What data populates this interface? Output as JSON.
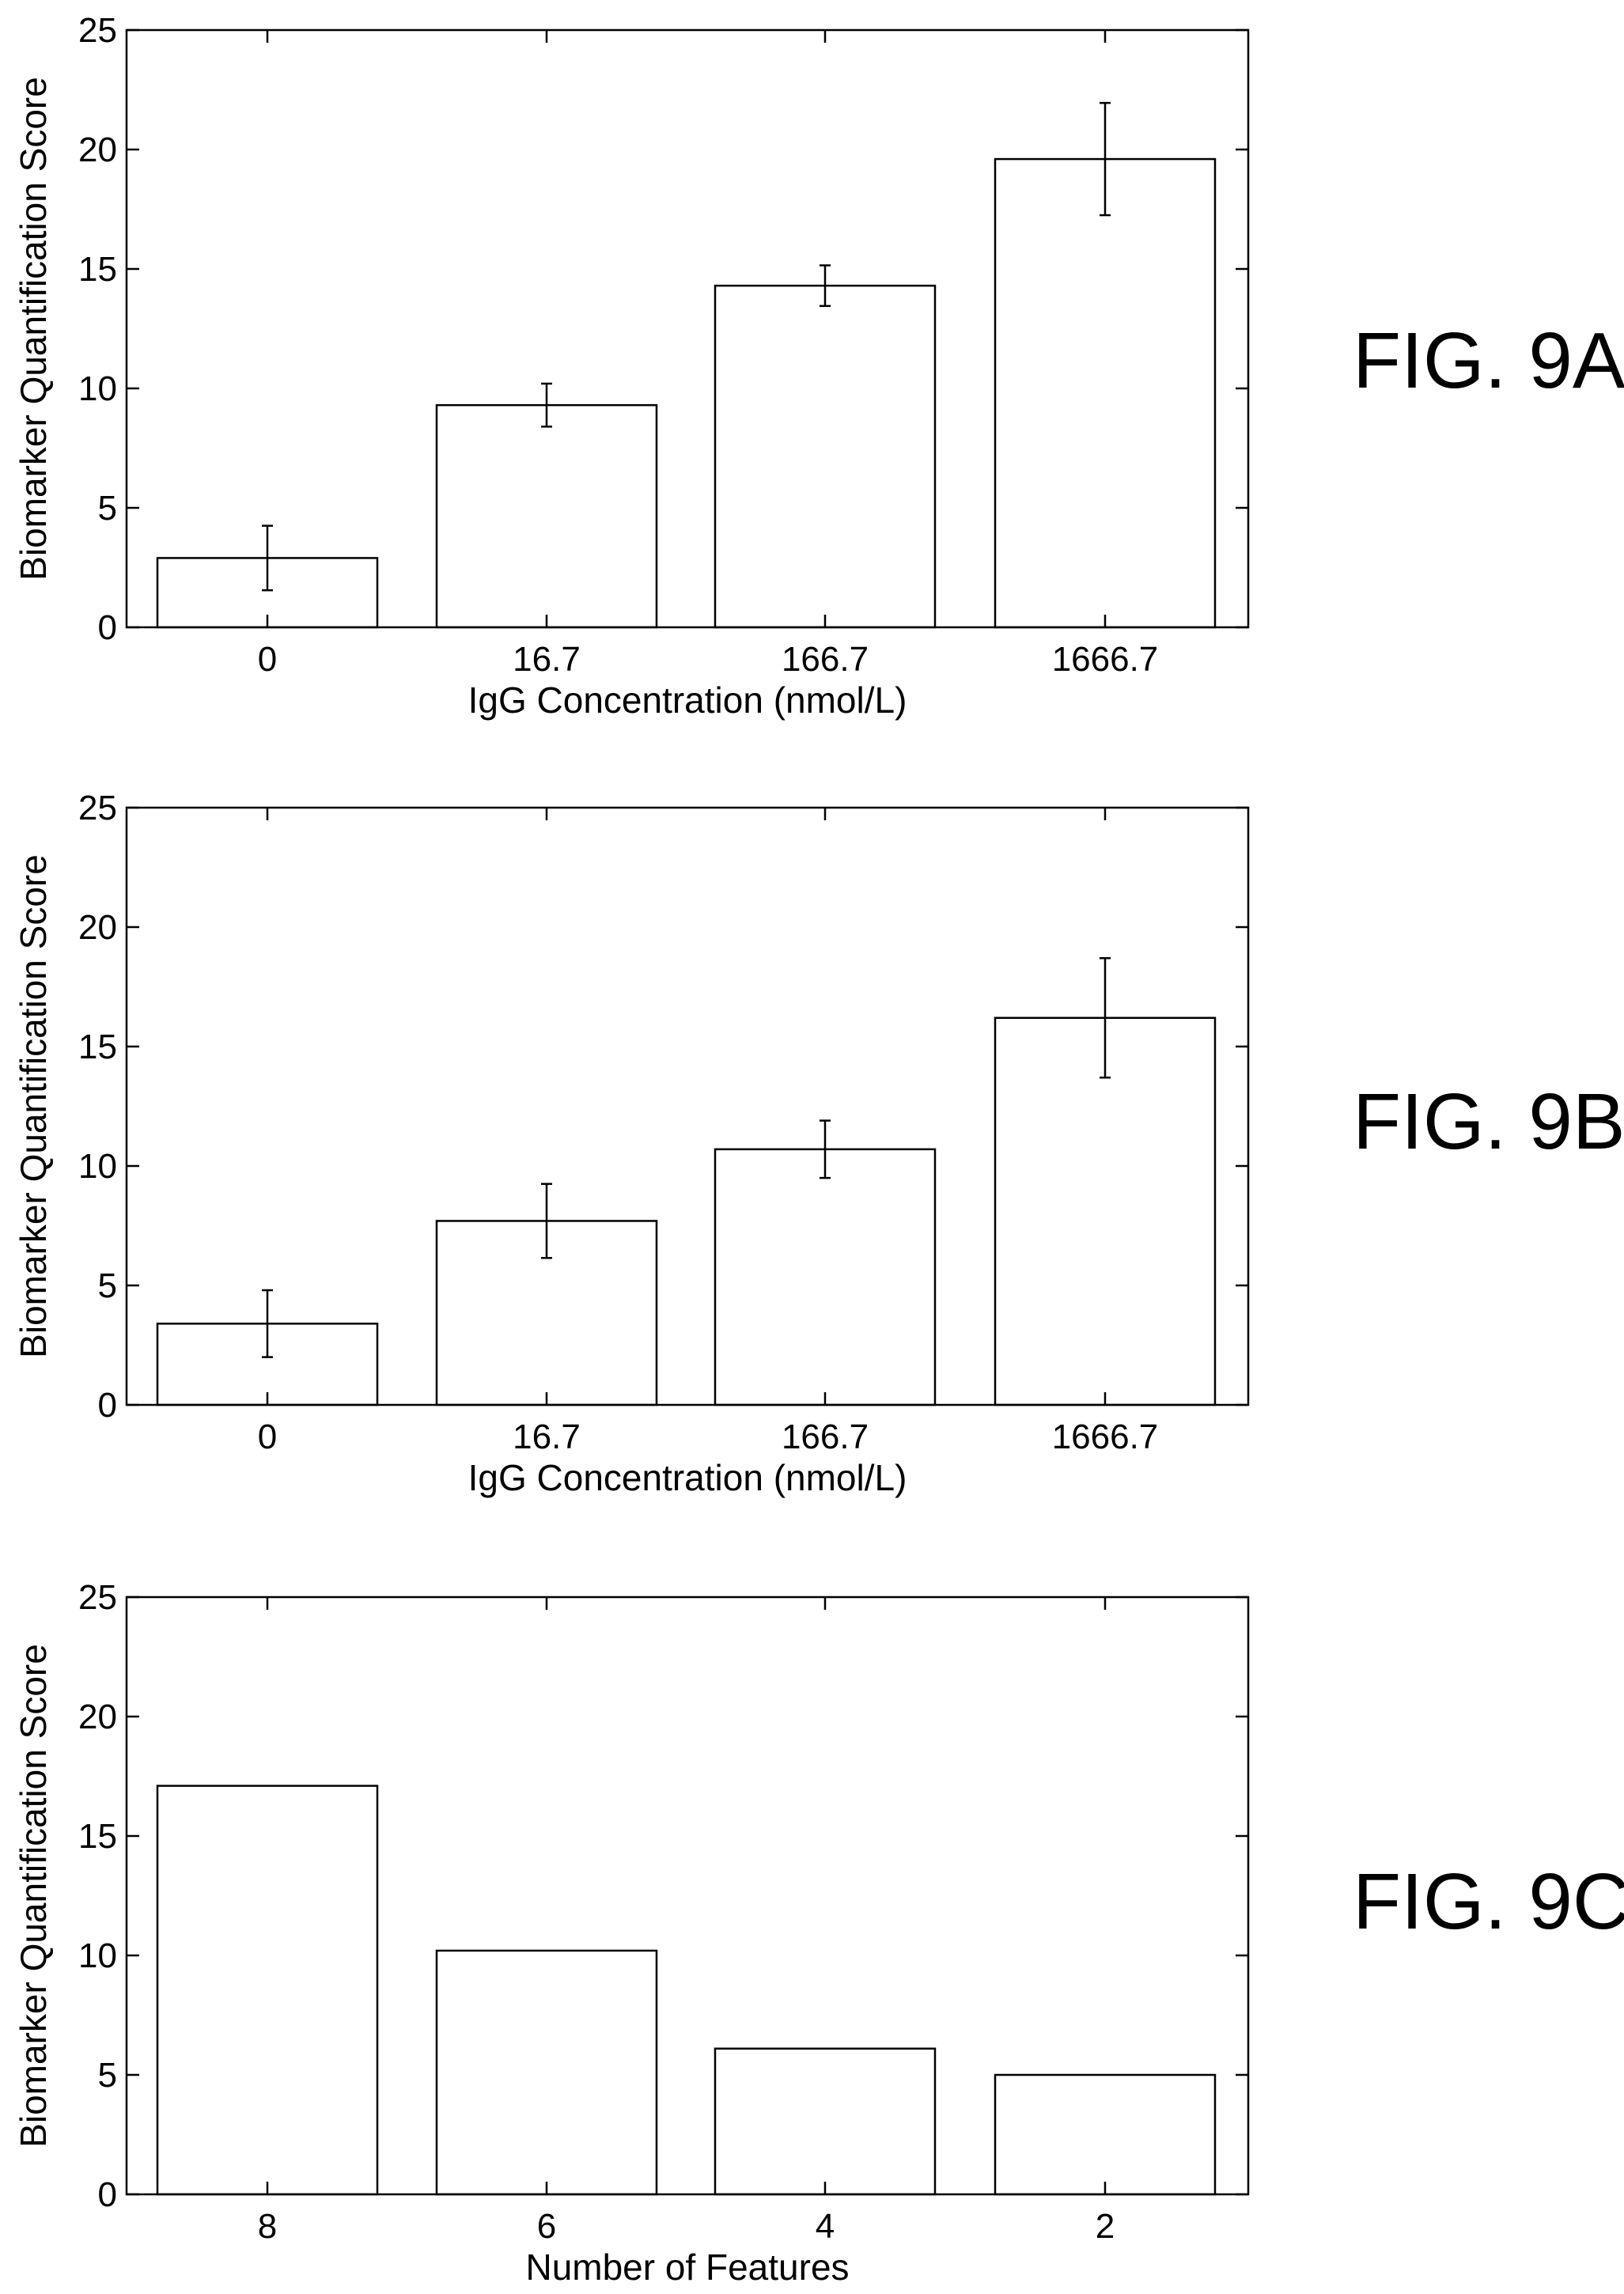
{
  "chart_data": [
    {
      "type": "bar",
      "figure_label": "FIG. 9A",
      "title": "",
      "xlabel": "IgG Concentration (nmol/L)",
      "ylabel": "Biomarker Quantification Score",
      "categories": [
        "0",
        "16.7",
        "166.7",
        "1666.7"
      ],
      "values": [
        2.9,
        9.3,
        14.3,
        19.6
      ],
      "error": [
        1.35,
        0.9,
        0.85,
        2.35
      ],
      "ylim": [
        0,
        25
      ],
      "yticks": [
        0,
        5,
        10,
        15,
        20,
        25
      ],
      "grid": false,
      "bar_color": "#ffffff",
      "edge_color": "#000000"
    },
    {
      "type": "bar",
      "figure_label": "FIG. 9B",
      "title": "",
      "xlabel": "IgG Concentration (nmol/L)",
      "ylabel": "Biomarker Quantification Score",
      "categories": [
        "0",
        "16.7",
        "166.7",
        "1666.7"
      ],
      "values": [
        3.4,
        7.7,
        10.7,
        16.2
      ],
      "error": [
        1.4,
        1.55,
        1.2,
        2.5
      ],
      "ylim": [
        0,
        25
      ],
      "yticks": [
        0,
        5,
        10,
        15,
        20,
        25
      ],
      "grid": false,
      "bar_color": "#ffffff",
      "edge_color": "#000000"
    },
    {
      "type": "bar",
      "figure_label": "FIG. 9C",
      "title": "",
      "xlabel": "Number of Features",
      "ylabel": "Biomarker Quantification Score",
      "categories": [
        "8",
        "6",
        "4",
        "2"
      ],
      "values": [
        17.1,
        10.2,
        6.1,
        5.0
      ],
      "error": null,
      "ylim": [
        0,
        25
      ],
      "yticks": [
        0,
        5,
        10,
        15,
        20,
        25
      ],
      "grid": false,
      "bar_color": "#ffffff",
      "edge_color": "#000000"
    }
  ]
}
